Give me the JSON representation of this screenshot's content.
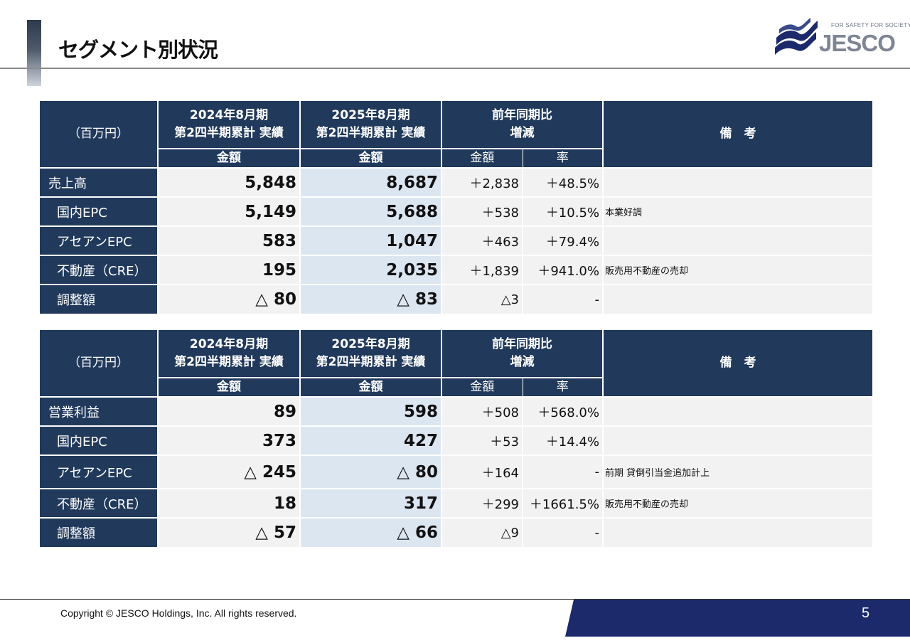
{
  "title": "セグメント別状況",
  "logo": {
    "tagline": "FOR SAFETY FOR SOCIETY",
    "wordmark": "JESCO"
  },
  "header": {
    "unit": "（百万円）",
    "col1_line1": "2024年8月期",
    "col1_line2": "第2四半期累計 実績",
    "col2_line1": "2025年8月期",
    "col2_line2": "第2四半期累計 実績",
    "amount": "金額",
    "yoy_line1": "前年同期比",
    "yoy_line2": "増減",
    "yoy_amount": "金額",
    "yoy_rate": "率",
    "remarks": "備　考"
  },
  "sales_table": {
    "rows": [
      {
        "label": "売上高",
        "v2024": "5,848",
        "v2025": "8,687",
        "diff": "＋2,838",
        "rate": "＋48.5%",
        "note": ""
      },
      {
        "label": "国内EPC",
        "v2024": "5,149",
        "v2025": "5,688",
        "diff": "＋538",
        "rate": "＋10.5%",
        "note": "本業好調"
      },
      {
        "label": "アセアンEPC",
        "v2024": "583",
        "v2025": "1,047",
        "diff": "＋463",
        "rate": "＋79.4%",
        "note": ""
      },
      {
        "label": "不動産（CRE）",
        "v2024": "195",
        "v2025": "2,035",
        "diff": "＋1,839",
        "rate": "＋941.0%",
        "note": "販売用不動産の売却"
      },
      {
        "label": "調整額",
        "v2024": "△ 80",
        "v2025": "△ 83",
        "diff": "△3",
        "rate": "-",
        "note": ""
      }
    ]
  },
  "profit_table": {
    "rows": [
      {
        "label": "営業利益",
        "v2024": "89",
        "v2025": "598",
        "diff": "＋508",
        "rate": "＋568.0%",
        "note": ""
      },
      {
        "label": "国内EPC",
        "v2024": "373",
        "v2025": "427",
        "diff": "＋53",
        "rate": "＋14.4%",
        "note": ""
      },
      {
        "label": "アセアンEPC",
        "v2024": "△ 245",
        "v2025": "△ 80",
        "diff": "＋164",
        "rate": "-",
        "note": "前期 貸倒引当金追加計上"
      },
      {
        "label": "不動産（CRE）",
        "v2024": "18",
        "v2025": "317",
        "diff": "＋299",
        "rate": "＋1661.5%",
        "note": "販売用不動産の売却"
      },
      {
        "label": "調整額",
        "v2024": "△ 57",
        "v2025": "△ 66",
        "diff": "△9",
        "rate": "-",
        "note": ""
      }
    ]
  },
  "footer": {
    "copyright": "Copyright © JESCO Holdings, Inc.  All rights reserved.",
    "page_number": "5"
  }
}
